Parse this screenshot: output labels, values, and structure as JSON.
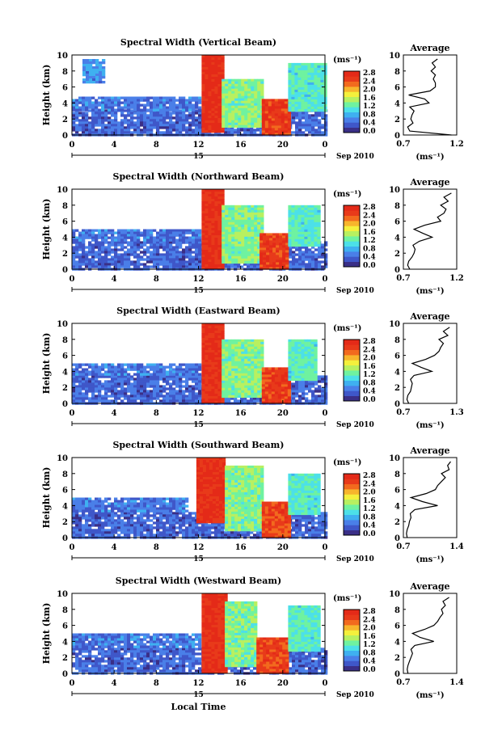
{
  "figure": {
    "xlabel": "Local Time",
    "date_label": "Sep 2010",
    "day_label": "15"
  },
  "chart_data": [
    {
      "type": "heatmap",
      "title": "Spectral Width (Vertical Beam)",
      "xlabel": "Local Time",
      "ylabel": "Height (km)",
      "x_ticks": [
        "0",
        "4",
        "8",
        "12",
        "16",
        "20",
        "0"
      ],
      "xlim": [
        0,
        24
      ],
      "y_ticks": [
        "0",
        "2",
        "4",
        "6",
        "8",
        "10"
      ],
      "ylim": [
        0,
        10
      ],
      "colorbar": {
        "unit": "(ms⁻¹)",
        "ticks": [
          "0.0",
          "0.4",
          "0.8",
          "1.2",
          "1.6",
          "2.0",
          "2.4",
          "2.8"
        ]
      },
      "regions": [
        {
          "x": [
            0,
            24
          ],
          "y": [
            0,
            3.2
          ],
          "value": 0.45
        },
        {
          "x": [
            0,
            12
          ],
          "y": [
            3.2,
            4.8
          ],
          "value": 0.55
        },
        {
          "x": [
            1,
            3
          ],
          "y": [
            6.5,
            9.5
          ],
          "value": 0.7
        },
        {
          "x": [
            12.3,
            14.2
          ],
          "y": [
            0.5,
            10
          ],
          "value": 2.75
        },
        {
          "x": [
            14.2,
            18
          ],
          "y": [
            1,
            7
          ],
          "value": 1.4
        },
        {
          "x": [
            18,
            20.5
          ],
          "y": [
            0,
            4.5
          ],
          "value": 2.6
        },
        {
          "x": [
            20.5,
            24
          ],
          "y": [
            3,
            9
          ],
          "value": 1.2
        }
      ],
      "average": {
        "title": "Average",
        "xlabel": "(ms⁻¹)",
        "x_ticks": [
          "0.7",
          "1.2"
        ],
        "xlim": [
          0.7,
          1.2
        ],
        "y_ticks": [
          "0",
          "2",
          "4",
          "6",
          "8",
          "10"
        ],
        "ylim": [
          0,
          10
        ],
        "height": [
          0,
          0.5,
          1,
          1.5,
          2,
          2.5,
          3,
          3.5,
          4,
          4.5,
          5,
          5.5,
          6,
          6.5,
          7,
          7.5,
          8,
          8.5,
          9,
          9.5
        ],
        "values": [
          1.15,
          0.76,
          0.74,
          0.79,
          0.77,
          0.78,
          0.8,
          0.76,
          0.94,
          0.9,
          0.75,
          0.95,
          1.0,
          1.0,
          0.98,
          1.0,
          0.96,
          1.0,
          0.97,
          1.02
        ]
      }
    },
    {
      "type": "heatmap",
      "title": "Spectral Width (Northward Beam)",
      "xlabel": "Local Time",
      "ylabel": "Height (km)",
      "x_ticks": [
        "0",
        "4",
        "8",
        "12",
        "16",
        "20",
        "0"
      ],
      "xlim": [
        0,
        24
      ],
      "y_ticks": [
        "0",
        "2",
        "4",
        "6",
        "8",
        "10"
      ],
      "ylim": [
        0,
        10
      ],
      "colorbar": {
        "unit": "(ms⁻¹)",
        "ticks": [
          "0.0",
          "0.4",
          "0.8",
          "1.2",
          "1.6",
          "2.0",
          "2.4",
          "2.8"
        ]
      },
      "regions": [
        {
          "x": [
            0,
            24
          ],
          "y": [
            0,
            3.5
          ],
          "value": 0.45
        },
        {
          "x": [
            0,
            12
          ],
          "y": [
            3.5,
            5
          ],
          "value": 0.55
        },
        {
          "x": [
            12.3,
            14.2
          ],
          "y": [
            0,
            10
          ],
          "value": 2.7
        },
        {
          "x": [
            14.2,
            18
          ],
          "y": [
            1,
            8
          ],
          "value": 1.4
        },
        {
          "x": [
            17.8,
            20.5
          ],
          "y": [
            0,
            4.5
          ],
          "value": 2.6
        },
        {
          "x": [
            20.5,
            23.5
          ],
          "y": [
            3,
            8
          ],
          "value": 1.2
        }
      ],
      "average": {
        "title": "Average",
        "xlabel": "(ms⁻¹)",
        "x_ticks": [
          "0.7",
          "1.2"
        ],
        "xlim": [
          0.7,
          1.2
        ],
        "height": [
          0,
          0.5,
          1,
          1.5,
          2,
          2.5,
          3,
          3.5,
          4,
          4.5,
          5,
          5.5,
          6,
          6.5,
          7,
          7.5,
          8,
          8.5,
          9,
          9.5
        ],
        "values": [
          0.76,
          0.74,
          0.75,
          0.78,
          0.8,
          0.81,
          0.79,
          0.85,
          0.97,
          0.88,
          0.8,
          0.9,
          1.05,
          1.02,
          1.08,
          1.1,
          1.05,
          1.12,
          1.08,
          1.15
        ]
      }
    },
    {
      "type": "heatmap",
      "title": "Spectral Width (Eastward Beam)",
      "xlabel": "Local Time",
      "ylabel": "Height (km)",
      "x_ticks": [
        "0",
        "4",
        "8",
        "12",
        "16",
        "20",
        "0"
      ],
      "xlim": [
        0,
        24
      ],
      "y_ticks": [
        "0",
        "2",
        "4",
        "6",
        "8",
        "10"
      ],
      "ylim": [
        0,
        10
      ],
      "colorbar": {
        "unit": "(ms⁻¹)",
        "ticks": [
          "0.0",
          "0.4",
          "0.8",
          "1.2",
          "1.6",
          "2.0",
          "2.4",
          "2.8"
        ]
      },
      "regions": [
        {
          "x": [
            0,
            24
          ],
          "y": [
            0,
            3.5
          ],
          "value": 0.45
        },
        {
          "x": [
            0,
            12
          ],
          "y": [
            3.5,
            5
          ],
          "value": 0.55
        },
        {
          "x": [
            12.3,
            14.2
          ],
          "y": [
            0,
            10
          ],
          "value": 2.7
        },
        {
          "x": [
            14.2,
            18
          ],
          "y": [
            1,
            8
          ],
          "value": 1.4
        },
        {
          "x": [
            18,
            20.5
          ],
          "y": [
            0,
            4.5
          ],
          "value": 2.6
        },
        {
          "x": [
            20.5,
            23
          ],
          "y": [
            3,
            8
          ],
          "value": 1.2
        }
      ],
      "average": {
        "title": "Average",
        "xlabel": "(ms⁻¹)",
        "x_ticks": [
          "0.7",
          "1.3"
        ],
        "xlim": [
          0.7,
          1.3
        ],
        "height": [
          0,
          0.5,
          1,
          1.5,
          2,
          2.5,
          3,
          3.5,
          4,
          4.5,
          5,
          5.5,
          6,
          6.5,
          7,
          7.5,
          8,
          8.5,
          9,
          9.5
        ],
        "values": [
          0.76,
          0.74,
          0.75,
          0.78,
          0.79,
          0.8,
          0.78,
          0.82,
          1.02,
          0.9,
          0.8,
          0.95,
          1.05,
          1.1,
          1.12,
          1.15,
          1.1,
          1.2,
          1.15,
          1.22
        ]
      }
    },
    {
      "type": "heatmap",
      "title": "Spectral Width (Southward Beam)",
      "xlabel": "Local Time",
      "ylabel": "Height (km)",
      "x_ticks": [
        "0",
        "4",
        "8",
        "12",
        "16",
        "20",
        "0"
      ],
      "xlim": [
        0,
        24
      ],
      "y_ticks": [
        "0",
        "2",
        "4",
        "6",
        "8",
        "10"
      ],
      "ylim": [
        0,
        10
      ],
      "colorbar": {
        "unit": "(ms⁻¹)",
        "ticks": [
          "0.0",
          "0.4",
          "0.8",
          "1.2",
          "1.6",
          "2.0",
          "2.4",
          "2.8"
        ]
      },
      "regions": [
        {
          "x": [
            0,
            24
          ],
          "y": [
            0,
            3.2
          ],
          "value": 0.45
        },
        {
          "x": [
            0,
            11
          ],
          "y": [
            3.2,
            5
          ],
          "value": 0.55
        },
        {
          "x": [
            11.8,
            14.5
          ],
          "y": [
            2,
            10
          ],
          "value": 2.7
        },
        {
          "x": [
            14.5,
            18
          ],
          "y": [
            1,
            9
          ],
          "value": 1.4
        },
        {
          "x": [
            18,
            20.5
          ],
          "y": [
            0,
            4.5
          ],
          "value": 2.5
        },
        {
          "x": [
            20.5,
            23.5
          ],
          "y": [
            3,
            8
          ],
          "value": 1.2
        }
      ],
      "average": {
        "title": "Average",
        "xlabel": "(ms⁻¹)",
        "x_ticks": [
          "0.7",
          "1.4"
        ],
        "xlim": [
          0.7,
          1.4
        ],
        "height": [
          0,
          0.5,
          1,
          1.5,
          2,
          2.5,
          3,
          3.5,
          4,
          4.5,
          5,
          5.5,
          6,
          6.5,
          7,
          7.5,
          8,
          8.5,
          9,
          9.5
        ],
        "values": [
          0.75,
          0.74,
          0.75,
          0.77,
          0.78,
          0.8,
          0.79,
          0.85,
          1.15,
          0.95,
          0.8,
          1.0,
          1.12,
          1.15,
          1.2,
          1.25,
          1.2,
          1.3,
          1.28,
          1.32
        ]
      }
    },
    {
      "type": "heatmap",
      "title": "Spectral Width (Westward Beam)",
      "xlabel": "Local Time",
      "ylabel": "Height (km)",
      "x_ticks": [
        "0",
        "4",
        "8",
        "12",
        "16",
        "20",
        "0"
      ],
      "xlim": [
        0,
        24
      ],
      "y_ticks": [
        "0",
        "2",
        "4",
        "6",
        "8",
        "10"
      ],
      "ylim": [
        0,
        10
      ],
      "colorbar": {
        "unit": "(ms⁻¹)",
        "ticks": [
          "0.0",
          "0.4",
          "0.8",
          "1.2",
          "1.6",
          "2.0",
          "2.4",
          "2.8"
        ]
      },
      "regions": [
        {
          "x": [
            0,
            24
          ],
          "y": [
            0,
            3.2
          ],
          "value": 0.45
        },
        {
          "x": [
            0,
            12
          ],
          "y": [
            3.2,
            5
          ],
          "value": 0.55
        },
        {
          "x": [
            12.3,
            14.5
          ],
          "y": [
            0,
            10
          ],
          "value": 2.7
        },
        {
          "x": [
            14.5,
            17.5
          ],
          "y": [
            1,
            9
          ],
          "value": 1.4
        },
        {
          "x": [
            17.5,
            20.5
          ],
          "y": [
            0,
            4.5
          ],
          "value": 2.5
        },
        {
          "x": [
            20.5,
            23.5
          ],
          "y": [
            3,
            8.5
          ],
          "value": 1.2
        }
      ],
      "average": {
        "title": "Average",
        "xlabel": "(ms⁻¹)",
        "x_ticks": [
          "0.7",
          "1.4"
        ],
        "xlim": [
          0.7,
          1.4
        ],
        "height": [
          0,
          0.5,
          1,
          1.5,
          2,
          2.5,
          3,
          3.5,
          4,
          4.5,
          5,
          5.5,
          6,
          6.5,
          7,
          7.5,
          8,
          8.5,
          9,
          9.5
        ],
        "values": [
          0.76,
          0.75,
          0.76,
          0.78,
          0.8,
          0.82,
          0.8,
          0.85,
          1.1,
          0.92,
          0.82,
          0.98,
          1.1,
          1.15,
          1.18,
          1.22,
          1.2,
          1.25,
          1.22,
          1.3
        ]
      }
    }
  ]
}
